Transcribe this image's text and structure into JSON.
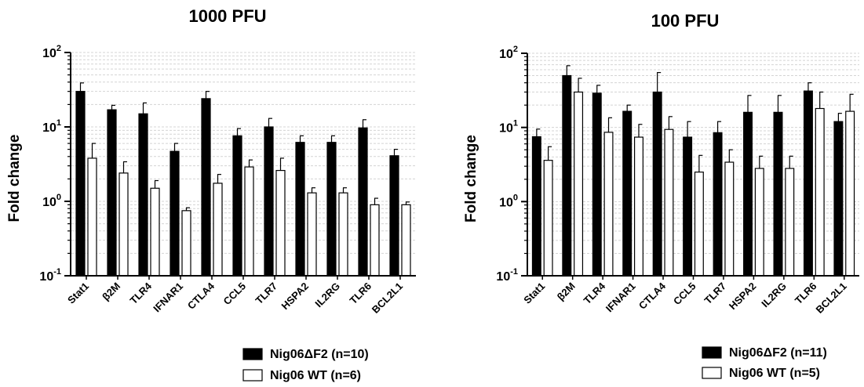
{
  "chart_data": [
    {
      "type": "bar",
      "title": "1000 PFU",
      "ylabel": "Fold change",
      "xlabel": "",
      "yscale": "log",
      "ylim": [
        0.1,
        100
      ],
      "yticks": [
        {
          "base": "10",
          "exp": "-1"
        },
        {
          "base": "10",
          "exp": "0"
        },
        {
          "base": "10",
          "exp": "1"
        },
        {
          "base": "10",
          "exp": "2"
        }
      ],
      "grid": "minor dashed horizontal",
      "legend_position": "bottom-right",
      "categories": [
        "Stat1",
        "β2M",
        "TLR4",
        "IFNAR1",
        "CTLA4",
        "CCL5",
        "TLR7",
        "HSPA2",
        "IL2RG",
        "TLR6",
        "BCL2L1"
      ],
      "series": [
        {
          "name": "Nig06ΔF2 (n=10)",
          "color": "#000000",
          "values": [
            30,
            17,
            15,
            4.7,
            24,
            7.6,
            10,
            6.2,
            6.2,
            9.7,
            4.1
          ],
          "err_upper": [
            39,
            19.5,
            21,
            6,
            30,
            9.5,
            13,
            7.6,
            7.6,
            12.5,
            5
          ]
        },
        {
          "name": "Nig06 WT (n=6)",
          "color": "#ffffff",
          "values": [
            3.8,
            2.4,
            1.5,
            0.75,
            1.75,
            2.9,
            2.6,
            1.3,
            1.3,
            0.9,
            0.9
          ],
          "err_upper": [
            6,
            3.4,
            1.9,
            0.82,
            2.3,
            3.6,
            3.8,
            1.52,
            1.52,
            1.1,
            0.98
          ]
        }
      ]
    },
    {
      "type": "bar",
      "title": "100 PFU",
      "ylabel": "Fold change",
      "xlabel": "",
      "yscale": "log",
      "ylim": [
        0.1,
        100
      ],
      "yticks": [
        {
          "base": "10",
          "exp": "-1"
        },
        {
          "base": "10",
          "exp": "0"
        },
        {
          "base": "10",
          "exp": "1"
        },
        {
          "base": "10",
          "exp": "2"
        }
      ],
      "grid": "minor dashed horizontal",
      "legend_position": "bottom-right",
      "categories": [
        "Stat1",
        "β2M",
        "TLR4",
        "IFNAR1",
        "CTLA4",
        "CCL5",
        "TLR7",
        "HSPA2",
        "IL2RG",
        "TLR6",
        "BCL2L1"
      ],
      "series": [
        {
          "name": "Nig06ΔF2 (n=11)",
          "color": "#000000",
          "values": [
            7.5,
            50,
            29,
            16.5,
            30,
            7.4,
            8.5,
            16,
            16,
            31,
            12
          ],
          "err_upper": [
            9.5,
            68,
            37,
            20,
            55,
            12,
            12,
            27,
            27,
            40,
            15.5
          ]
        },
        {
          "name": "Nig06 WT (n=5)",
          "color": "#ffffff",
          "values": [
            3.6,
            30,
            8.6,
            7.4,
            9.4,
            2.5,
            3.4,
            2.8,
            2.8,
            18,
            16.5
          ],
          "err_upper": [
            5.5,
            46,
            13.5,
            11,
            14,
            4.2,
            5,
            4.1,
            4.1,
            30,
            28
          ]
        }
      ]
    }
  ]
}
